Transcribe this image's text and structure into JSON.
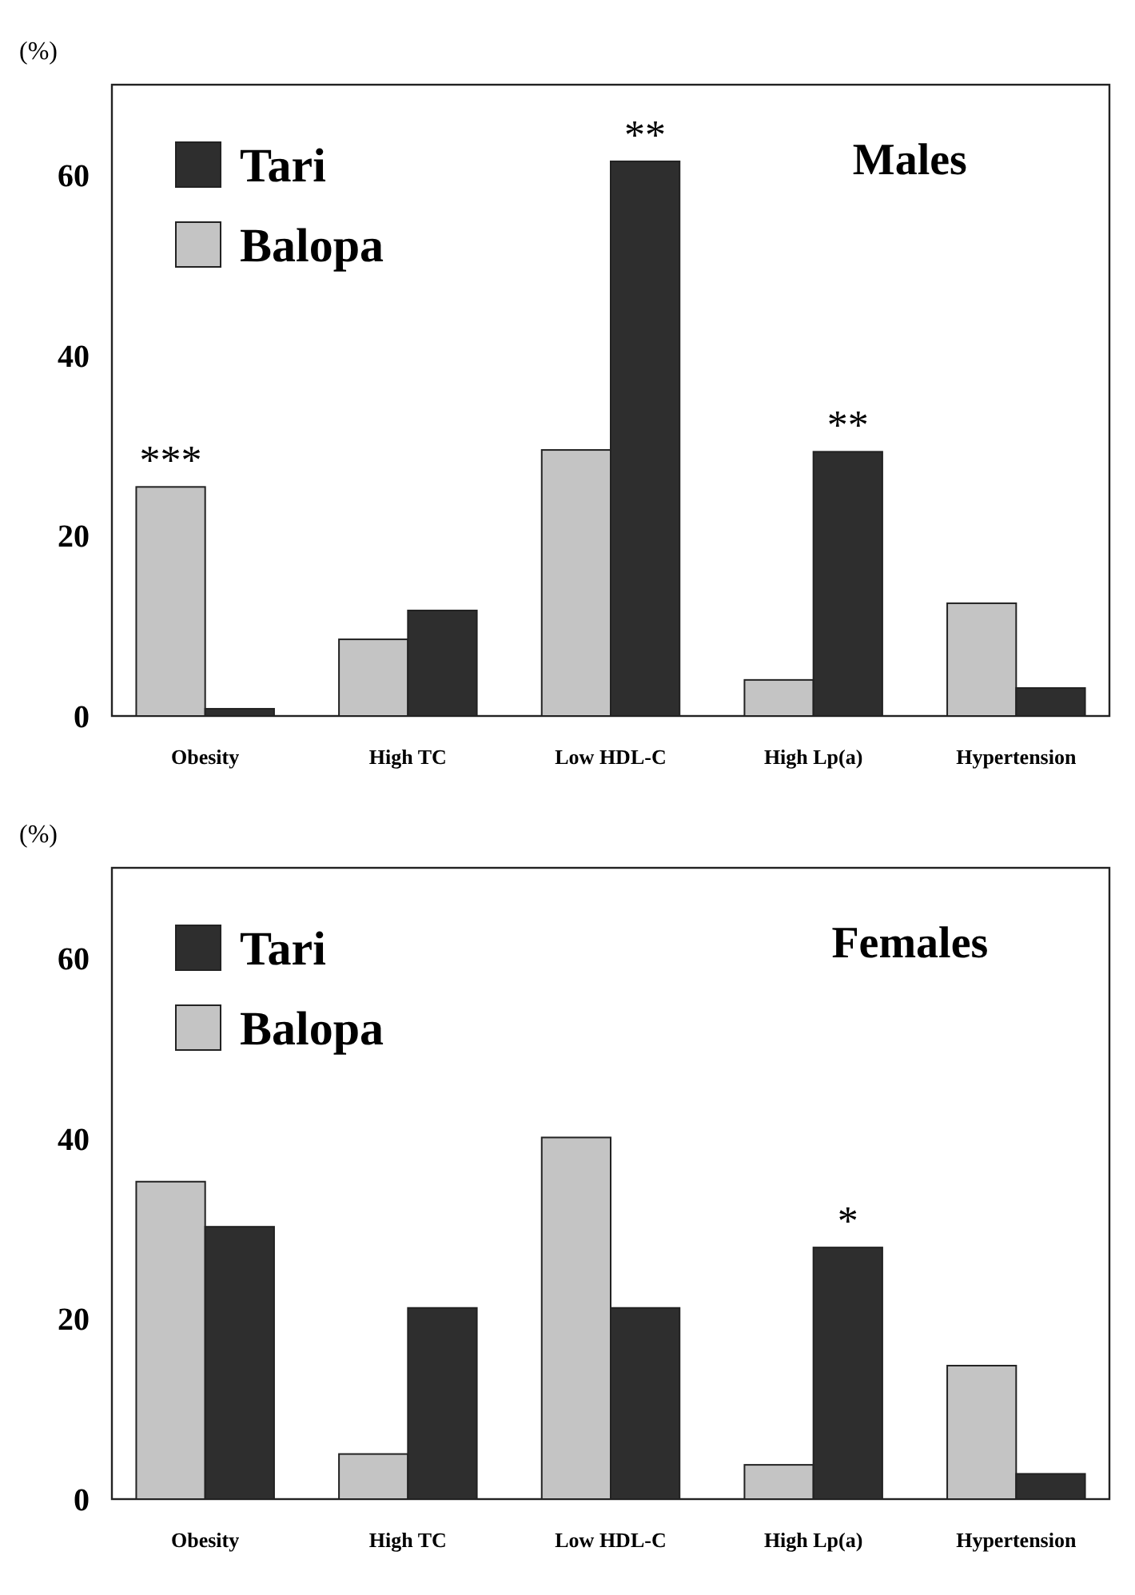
{
  "chart_data": [
    {
      "type": "bar",
      "title": "Males",
      "ylabel": "(%)",
      "categories": [
        "Obesity",
        "High TC",
        "Low HDL-C",
        "High Lp(a)",
        "Hypertension"
      ],
      "series": [
        {
          "name": "Balopa",
          "color": "#c4c4c4",
          "values": [
            25.4,
            8.5,
            29.5,
            4.0,
            12.5
          ]
        },
        {
          "name": "Tari",
          "color": "#2e2e2e",
          "values": [
            0.8,
            11.7,
            61.5,
            29.3,
            3.1
          ]
        }
      ],
      "ylim": [
        0,
        70
      ],
      "yticks": [
        0,
        20,
        40,
        60
      ],
      "legend": "top left",
      "grid": false,
      "annotations": [
        {
          "text": "***",
          "x": "Obesity",
          "y": 25.4
        },
        {
          "text": "**",
          "x": "Low HDL-C",
          "y": 61.5
        },
        {
          "text": "**",
          "x": "High Lp(a)",
          "y": 29.3
        }
      ]
    },
    {
      "type": "bar",
      "title": "Females",
      "ylabel": "(%)",
      "categories": [
        "Obesity",
        "High TC",
        "Low HDL-C",
        "High Lp(a)",
        "Hypertension"
      ],
      "series": [
        {
          "name": "Balopa",
          "color": "#c4c4c4",
          "values": [
            35.2,
            5.0,
            40.1,
            3.8,
            14.8
          ]
        },
        {
          "name": "Tari",
          "color": "#2e2e2e",
          "values": [
            30.2,
            21.2,
            21.2,
            27.9,
            2.8
          ]
        }
      ],
      "ylim": [
        0,
        70
      ],
      "yticks": [
        0,
        20,
        40,
        60
      ],
      "legend": "top left",
      "grid": false,
      "annotations": [
        {
          "text": "*",
          "x": "High Lp(a)",
          "y": 27.9
        }
      ]
    }
  ]
}
